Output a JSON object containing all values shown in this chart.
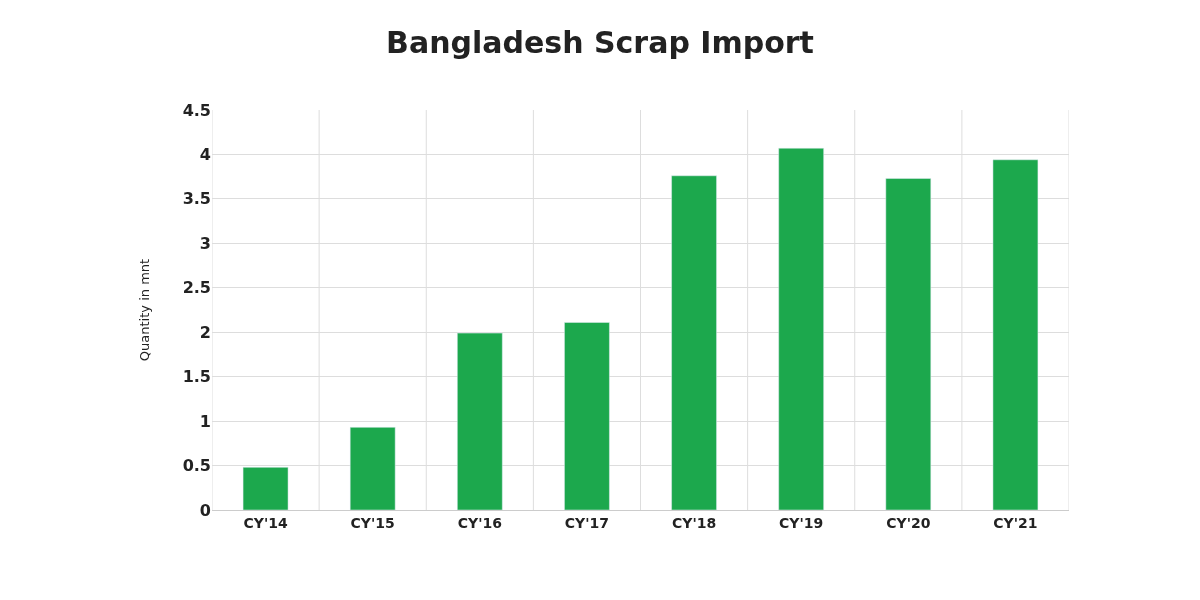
{
  "chart_data": {
    "type": "bar",
    "title": "Bangladesh Scrap Import",
    "ylabel": "Quantity in mnt",
    "categories": [
      "CY'14",
      "CY'15",
      "CY'16",
      "CY'17",
      "CY'18",
      "CY'19",
      "CY'20",
      "CY'21"
    ],
    "values": [
      0.48,
      0.93,
      1.99,
      2.11,
      3.76,
      4.07,
      3.73,
      3.94
    ],
    "color": "#1ca84d",
    "ylim": [
      0,
      4.5
    ],
    "yticks": [
      0,
      0.5,
      1,
      1.5,
      2,
      2.5,
      3,
      3.5,
      4,
      4.5
    ],
    "grid": true
  }
}
